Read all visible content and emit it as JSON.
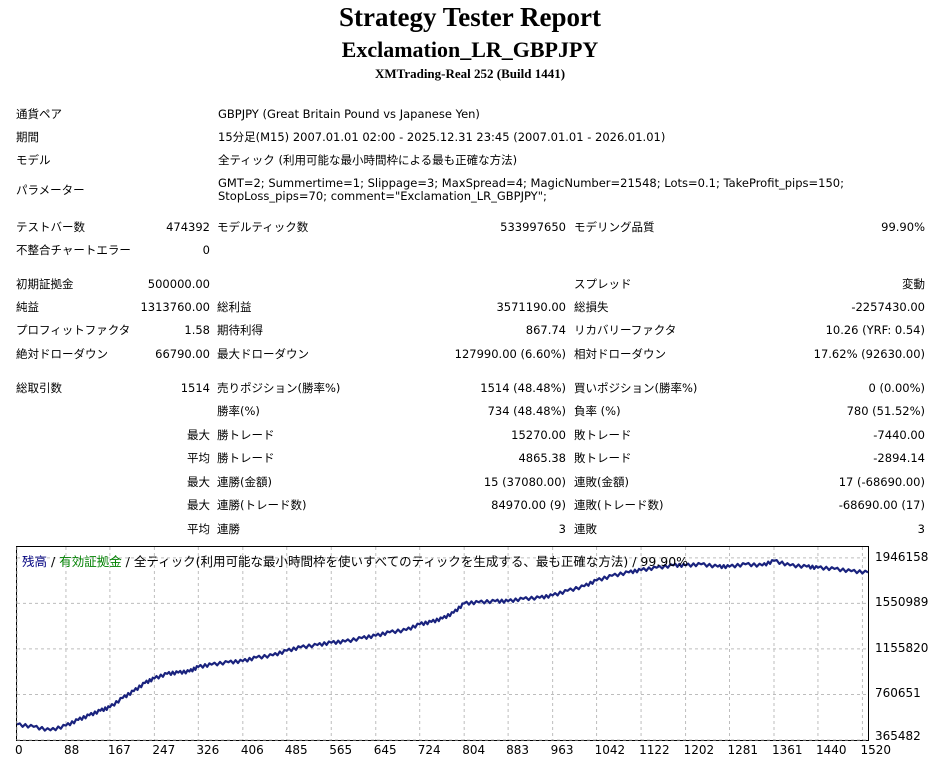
{
  "header": {
    "title": "Strategy Tester Report",
    "subtitle": "Exclamation_LR_GBPJPY",
    "server": "XMTrading-Real 252 (Build 1441)"
  },
  "info": {
    "symbol_label": "通貨ペア",
    "symbol_value": "GBPJPY (Great Britain Pound vs Japanese Yen)",
    "period_label": "期間",
    "period_value": "15分足(M15) 2007.01.01 02:00 - 2025.12.31 23:45 (2007.01.01 - 2026.01.01)",
    "model_label": "モデル",
    "model_value": "全ティック (利用可能な最小時間枠による最も正確な方法)",
    "params_label": "パラメーター",
    "params_value": "GMT=2; Summertime=1; Slippage=3; MaxSpread=4; MagicNumber=21548; Lots=0.1; TakeProfit_pips=150; StopLoss_pips=70; comment=\"Exclamation_LR_GBPJPY\";"
  },
  "stats": {
    "bars_label": "テストバー数",
    "bars_value": "474392",
    "ticks_label": "モデルティック数",
    "ticks_value": "533997650",
    "quality_label": "モデリング品質",
    "quality_value": "99.90%",
    "mismatch_label": "不整合チャートエラー",
    "mismatch_value": "0",
    "deposit_label": "初期証拠金",
    "deposit_value": "500000.00",
    "spread_label": "スプレッド",
    "spread_value": "変動",
    "net_label": "純益",
    "net_value": "1313760.00",
    "gross_profit_label": "総利益",
    "gross_profit_value": "3571190.00",
    "gross_loss_label": "総損失",
    "gross_loss_value": "-2257430.00",
    "pf_label": "プロフィットファクタ",
    "pf_value": "1.58",
    "payoff_label": "期待利得",
    "payoff_value": "867.74",
    "rf_label": "リカバリーファクタ",
    "rf_value": "10.26 (YRF: 0.54)",
    "abs_dd_label": "絶対ドローダウン",
    "abs_dd_value": "66790.00",
    "max_dd_label": "最大ドローダウン",
    "max_dd_value": "127990.00 (6.60%)",
    "rel_dd_label": "相対ドローダウン",
    "rel_dd_value": "17.62% (92630.00)",
    "trades_label": "総取引数",
    "trades_value": "1514",
    "short_label": "売りポジション(勝率%)",
    "short_value": "1514 (48.48%)",
    "long_label": "買いポジション(勝率%)",
    "long_value": "0 (0.00%)",
    "win_label": "勝率(%)",
    "win_value": "734 (48.48%)",
    "loss_label": "負率 (%)",
    "loss_value": "780 (51.52%)",
    "max_label": "最大",
    "avg_label": "平均",
    "best_label": "勝トレード",
    "best_value": "15270.00",
    "worst_label": "敗トレード",
    "worst_value": "-7440.00",
    "avg_win_label": "勝トレード",
    "avg_win_value": "4865.38",
    "avg_loss_label": "敗トレード",
    "avg_loss_value": "-2894.14",
    "cons_win_money_label": "連勝(金額)",
    "cons_win_money_value": "15 (37080.00)",
    "cons_loss_money_label": "連敗(金額)",
    "cons_loss_money_value": "17 (-68690.00)",
    "cons_win_trades_label": "連勝(トレード数)",
    "cons_win_trades_value": "84970.00 (9)",
    "cons_loss_trades_label": "連敗(トレード数)",
    "cons_loss_trades_value": "-68690.00 (17)",
    "avg_cons_win_label": "連勝",
    "avg_cons_win_value": "3",
    "avg_cons_loss_label": "連敗",
    "avg_cons_loss_value": "3"
  },
  "chart_data": {
    "type": "line",
    "legend": {
      "balance": "残高",
      "sep1": " / ",
      "equity": "有効証拠金",
      "rest": " / 全ティック(利用可能な最小時間枠を使いすべてのティックを生成する、最も正確な方法) / 99.90%"
    },
    "x_ticks": [
      0,
      88,
      167,
      247,
      326,
      406,
      485,
      565,
      645,
      724,
      804,
      883,
      963,
      1042,
      1122,
      1202,
      1281,
      1361,
      1440,
      1520
    ],
    "y_ticks": [
      365482,
      760651,
      1155820,
      1550989,
      1946158
    ],
    "xlim": [
      0,
      1530
    ],
    "ylim": [
      365482,
      2040000
    ],
    "series": [
      {
        "x": [
          0,
          30,
          60,
          88,
          110,
          130,
          150,
          167,
          190,
          210,
          230,
          247,
          270,
          290,
          310,
          326,
          350,
          380,
          406,
          430,
          460,
          485,
          510,
          540,
          565,
          590,
          620,
          645,
          670,
          700,
          724,
          745,
          765,
          785,
          804,
          830,
          860,
          883,
          910,
          940,
          963,
          990,
          1020,
          1042,
          1070,
          1100,
          1122,
          1150,
          1180,
          1202,
          1230,
          1260,
          1281,
          1310,
          1340,
          1361,
          1390,
          1420,
          1440,
          1470,
          1500,
          1530
        ],
        "y": [
          500000,
          480000,
          450000,
          490000,
          540000,
          580000,
          620000,
          650000,
          730000,
          790000,
          860000,
          900000,
          940000,
          950000,
          960000,
          1000000,
          1020000,
          1040000,
          1050000,
          1080000,
          1100000,
          1140000,
          1170000,
          1190000,
          1210000,
          1220000,
          1250000,
          1270000,
          1300000,
          1320000,
          1370000,
          1390000,
          1420000,
          1470000,
          1550000,
          1560000,
          1570000,
          1570000,
          1590000,
          1600000,
          1620000,
          1660000,
          1700000,
          1750000,
          1790000,
          1820000,
          1840000,
          1860000,
          1880000,
          1880000,
          1890000,
          1870000,
          1870000,
          1890000,
          1880000,
          1920000,
          1880000,
          1870000,
          1860000,
          1850000,
          1830000,
          1820000
        ]
      }
    ],
    "line_color": "#1a237e"
  }
}
